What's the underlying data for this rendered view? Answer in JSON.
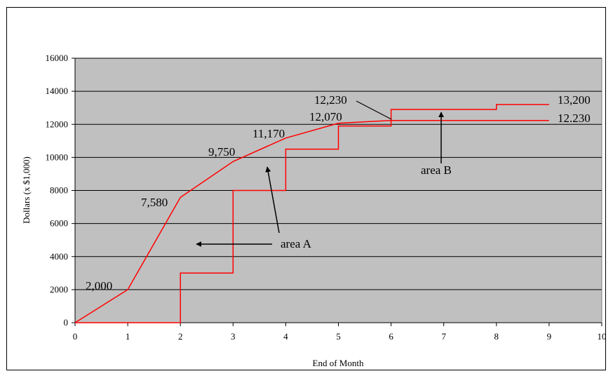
{
  "chart_data": {
    "type": "line",
    "title": "",
    "xlabel": "End of Month",
    "ylabel": "Dollars (x $1,000)",
    "xlim": [
      0,
      10
    ],
    "ylim": [
      0,
      16000
    ],
    "x_ticks": [
      "0",
      "1",
      "2",
      "3",
      "4",
      "5",
      "6",
      "7",
      "8",
      "9",
      "10"
    ],
    "y_ticks": [
      "0",
      "2000",
      "4000",
      "6000",
      "8000",
      "10000",
      "12000",
      "14000",
      "16000"
    ],
    "grid": "horizontal",
    "plot_background": "#c0c0c0",
    "series": [
      {
        "color": "#ff0000",
        "style": "linear",
        "x": [
          0,
          1,
          2,
          3,
          4,
          5,
          6
        ],
        "y": [
          0,
          2000,
          7580,
          9750,
          11170,
          12070,
          12230
        ]
      },
      {
        "color": "#ff0000",
        "style": "linear",
        "x": [
          6,
          9
        ],
        "y": [
          12230,
          12230
        ]
      },
      {
        "color": "#ff0000",
        "style": "step",
        "x": [
          0,
          2,
          2,
          3,
          3,
          4,
          4,
          5,
          5,
          6,
          6,
          8,
          8,
          9
        ],
        "y": [
          0,
          0,
          3000,
          3000,
          8000,
          8000,
          10500,
          10500,
          11900,
          11900,
          12900,
          12900,
          13200,
          13200
        ]
      }
    ],
    "annotations": {
      "p1": "2,000",
      "p2": "7,580",
      "p3": "9,750",
      "p4": "11,170",
      "p5": "12,070",
      "p6": "12,230",
      "end_upper": "13,200",
      "end_lower": "12.230",
      "area_a": "area A",
      "area_b": "area B"
    }
  }
}
